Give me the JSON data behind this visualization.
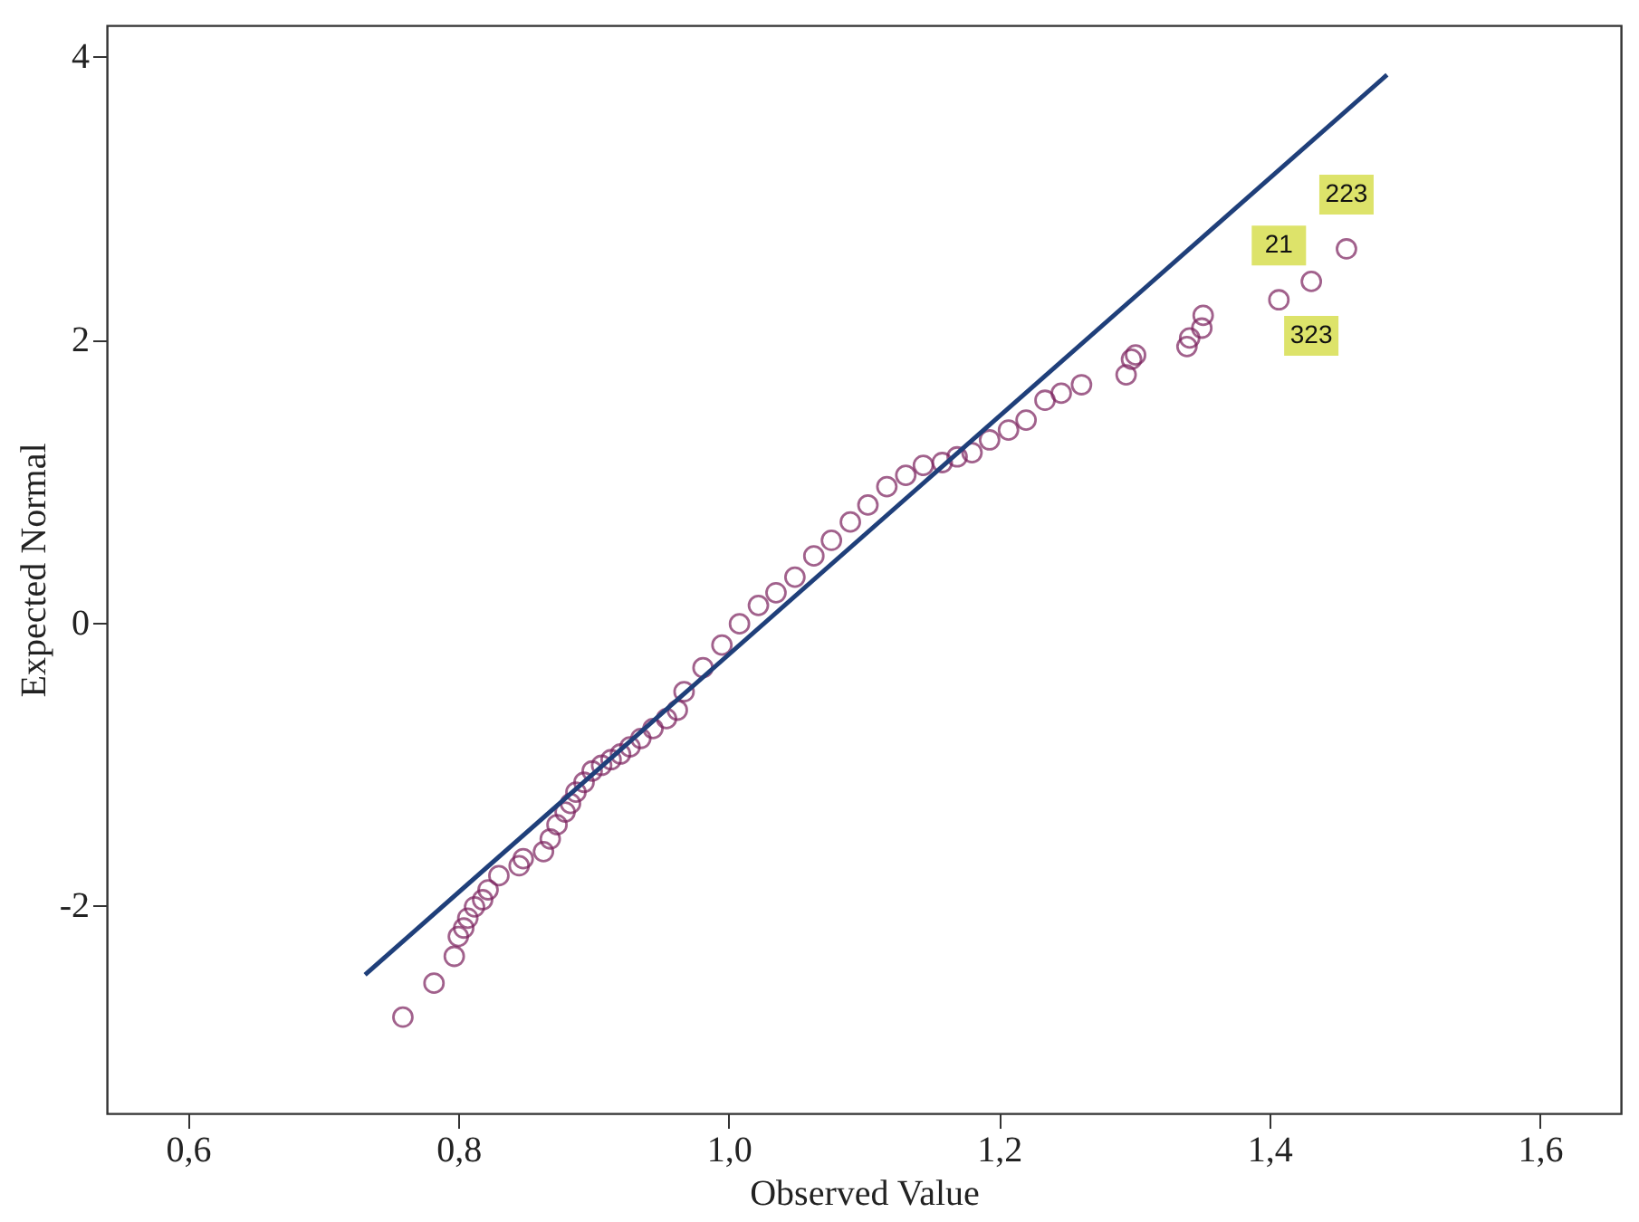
{
  "chart_data": {
    "type": "scatter",
    "xlabel": "Observed Value",
    "ylabel": "Expected Normal",
    "xlim": [
      0.54,
      1.66
    ],
    "ylim": [
      -3.47,
      4.22
    ],
    "xticks": [
      {
        "value": 0.6,
        "label": "0,6"
      },
      {
        "value": 0.8,
        "label": "0,8"
      },
      {
        "value": 1.0,
        "label": "1,0"
      },
      {
        "value": 1.2,
        "label": "1,2"
      },
      {
        "value": 1.4,
        "label": "1,4"
      },
      {
        "value": 1.6,
        "label": "1,6"
      }
    ],
    "yticks": [
      -2,
      0,
      2,
      4
    ],
    "grid": false,
    "series": [
      {
        "marker": "circle",
        "color": "#7a1f5c",
        "x": [
          0.759,
          0.782,
          0.797,
          0.8,
          0.804,
          0.807,
          0.812,
          0.818,
          0.822,
          0.83,
          0.845,
          0.848,
          0.863,
          0.868,
          0.873,
          0.879,
          0.883,
          0.887,
          0.893,
          0.899,
          0.906,
          0.913,
          0.92,
          0.927,
          0.935,
          0.944,
          0.954,
          0.962,
          0.967,
          0.981,
          0.995,
          1.008,
          1.022,
          1.035,
          1.049,
          1.063,
          1.076,
          1.09,
          1.103,
          1.117,
          1.131,
          1.144,
          1.158,
          1.169,
          1.18,
          1.193,
          1.207,
          1.22,
          1.234,
          1.246,
          1.261,
          1.294,
          1.298,
          1.301,
          1.339,
          1.341,
          1.35,
          1.351,
          1.407,
          1.431,
          1.457
        ],
        "values": [
          -2.79,
          -2.55,
          -2.36,
          -2.22,
          -2.16,
          -2.09,
          -2.01,
          -1.96,
          -1.89,
          -1.79,
          -1.72,
          -1.67,
          -1.62,
          -1.53,
          -1.43,
          -1.34,
          -1.28,
          -1.2,
          -1.13,
          -1.05,
          -1.01,
          -0.97,
          -0.93,
          -0.88,
          -0.82,
          -0.75,
          -0.68,
          -0.62,
          -0.49,
          -0.32,
          -0.16,
          -0.01,
          0.12,
          0.21,
          0.32,
          0.47,
          0.58,
          0.71,
          0.83,
          0.96,
          1.04,
          1.11,
          1.13,
          1.17,
          1.2,
          1.29,
          1.36,
          1.43,
          1.57,
          1.62,
          1.68,
          1.75,
          1.86,
          1.89,
          1.95,
          2.01,
          2.08,
          2.17,
          2.28,
          2.41,
          2.64
        ]
      },
      {
        "type": "line",
        "color": "#1f3f7a",
        "x": [
          0.731,
          1.487
        ],
        "values": [
          -2.49,
          3.87
        ]
      }
    ],
    "annotations": [
      {
        "text": "21",
        "x": 1.407,
        "y": 2.28
      },
      {
        "text": "323",
        "x": 1.431,
        "y": 2.41
      },
      {
        "text": "223",
        "x": 1.457,
        "y": 2.64
      }
    ]
  }
}
